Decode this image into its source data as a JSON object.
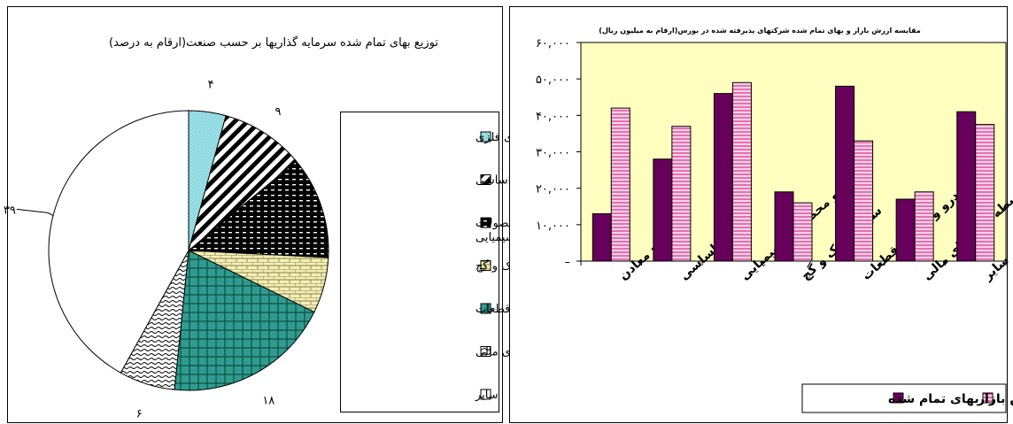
{
  "chart_data": [
    {
      "type": "pie",
      "title": "توزیع بهای تمام شده سرمایه گذاریها بر حسب صنعت(ارقام به درصد)",
      "legend_position": "right",
      "slices": [
        {
          "name": "استخراج کانه های فلزی",
          "value": 4,
          "label": "۴",
          "color": "#9fe3ea",
          "pattern": "dots"
        },
        {
          "name": "فلزات اساسی",
          "value": 9,
          "label": "۹",
          "color": "#000000",
          "pattern": "diag"
        },
        {
          "name": "ساخت مواد و محصولات شیمیایی",
          "value": 11,
          "label": "۱۱",
          "color": "#000000",
          "pattern": "dashes"
        },
        {
          "name": "سیمان آهک و گچ",
          "value": 6,
          "label": "۶",
          "color": "#f4efb4",
          "pattern": "brick"
        },
        {
          "name": "خودرو و ساخت قطعات",
          "value": 18,
          "label": "۱۸",
          "color": "#2f9c8f",
          "pattern": "weave"
        },
        {
          "name": "واسطه گری های مالی",
          "value": 6,
          "label": "۶",
          "color": "#ffffff",
          "pattern": "wave"
        },
        {
          "name": "سایر",
          "value": 39,
          "label": "۳۹",
          "color": "#ffffff",
          "pattern": "none"
        }
      ]
    },
    {
      "type": "bar",
      "title": "مقایسه ارزش بازار و بهای تمام شده شرکتهای پذیرفته شده در بورس(ارقام به میلیون ریال)",
      "categories": [
        "استخراج معادن",
        "فلزات اساسی",
        "مواد و محصولات شیمیایی",
        "سیمان آهک و گچ",
        "خودرو و ساخت قطعات",
        "واسطه گری های مالی",
        "سایر"
      ],
      "series": [
        {
          "name": "بهای تمام شده",
          "values": [
            13000,
            28000,
            46000,
            19000,
            48000,
            17000,
            41000
          ],
          "color": "#66005a"
        },
        {
          "name": "ارزش بازار",
          "values": [
            42000,
            37000,
            49000,
            16000,
            33000,
            19000,
            37500
          ],
          "color": "#ffd0ee"
        }
      ],
      "ylim": [
        0,
        60000
      ],
      "yticks": [
        "–",
        "۱۰,۰۰۰",
        "۲۰,۰۰۰",
        "۳۰,۰۰۰",
        "۴۰,۰۰۰",
        "۵۰,۰۰۰",
        "۶۰,۰۰۰"
      ],
      "legend_position": "bottom-right"
    }
  ]
}
